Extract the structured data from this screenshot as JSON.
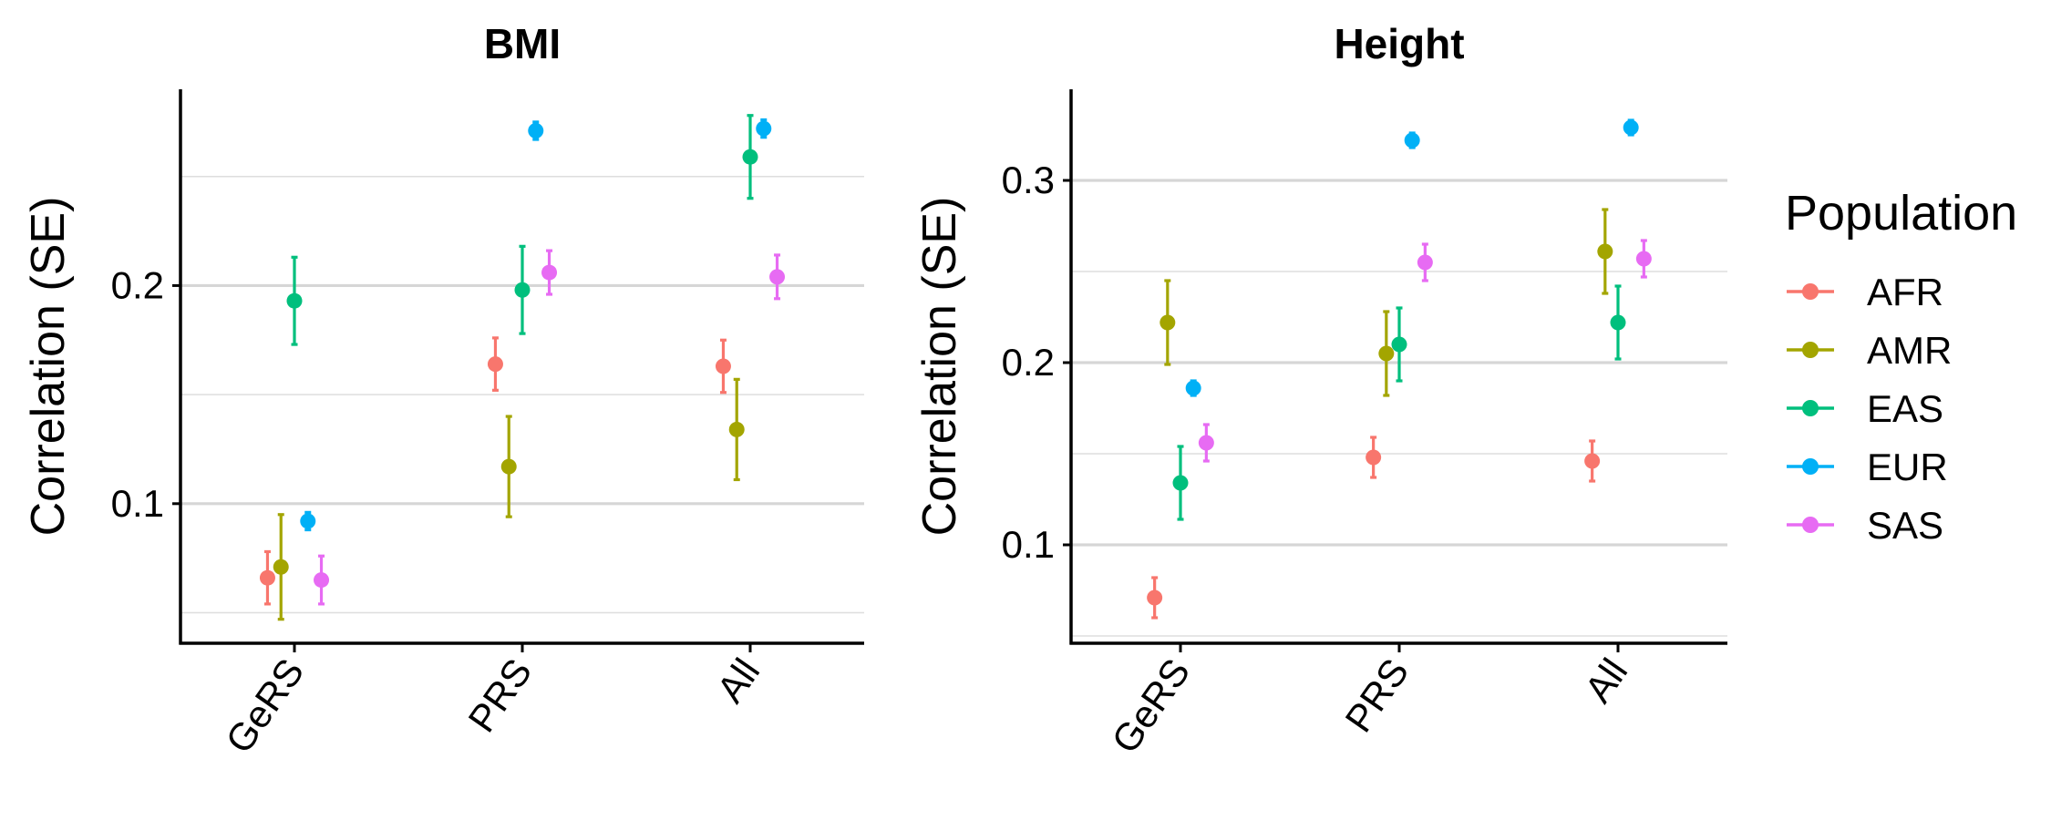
{
  "legend": {
    "title": "Population",
    "entries": [
      {
        "name": "AFR",
        "color": "#F8766D"
      },
      {
        "name": "AMR",
        "color": "#A3A500"
      },
      {
        "name": "EAS",
        "color": "#00BF7D"
      },
      {
        "name": "EUR",
        "color": "#00B0F6"
      },
      {
        "name": "SAS",
        "color": "#E76BF3"
      }
    ],
    "placement": "right"
  },
  "chart_data": [
    {
      "type": "scatter",
      "title": "BMI",
      "xlabel": "",
      "ylabel": "Correlation (SE)",
      "categories": [
        "GeRS",
        "PRS",
        "All"
      ],
      "ylim": [
        0.036,
        0.29
      ],
      "yticks": [
        0.1,
        0.2
      ],
      "ytick_labels": [
        "0.1",
        "0.2"
      ],
      "minor_gridlines": [
        0.05,
        0.15,
        0.25
      ],
      "grid": true,
      "series": [
        {
          "name": "AFR",
          "values": [
            0.066,
            0.164,
            0.163
          ],
          "se": [
            0.012,
            0.012,
            0.012
          ]
        },
        {
          "name": "AMR",
          "values": [
            0.071,
            0.117,
            0.134
          ],
          "se": [
            0.024,
            0.023,
            0.023
          ]
        },
        {
          "name": "EAS",
          "values": [
            0.193,
            0.198,
            0.259
          ],
          "se": [
            0.02,
            0.02,
            0.019
          ]
        },
        {
          "name": "EUR",
          "values": [
            0.092,
            0.271,
            0.272
          ],
          "se": [
            0.004,
            0.004,
            0.004
          ]
        },
        {
          "name": "SAS",
          "values": [
            0.065,
            0.206,
            0.204
          ],
          "se": [
            0.011,
            0.01,
            0.01
          ]
        }
      ]
    },
    {
      "type": "scatter",
      "title": "Height",
      "xlabel": "",
      "ylabel": "Correlation (SE)",
      "categories": [
        "GeRS",
        "PRS",
        "All"
      ],
      "ylim": [
        0.046,
        0.35
      ],
      "yticks": [
        0.1,
        0.2,
        0.3
      ],
      "ytick_labels": [
        "0.1",
        "0.2",
        "0.3"
      ],
      "minor_gridlines": [
        0.05,
        0.15,
        0.25
      ],
      "grid": true,
      "series": [
        {
          "name": "AFR",
          "values": [
            0.071,
            0.148,
            0.146
          ],
          "se": [
            0.011,
            0.011,
            0.011
          ]
        },
        {
          "name": "AMR",
          "values": [
            0.222,
            0.205,
            0.261
          ],
          "se": [
            0.023,
            0.023,
            0.023
          ]
        },
        {
          "name": "EAS",
          "values": [
            0.134,
            0.21,
            0.222
          ],
          "se": [
            0.02,
            0.02,
            0.02
          ]
        },
        {
          "name": "EUR",
          "values": [
            0.186,
            0.322,
            0.329
          ],
          "se": [
            0.004,
            0.004,
            0.004
          ]
        },
        {
          "name": "SAS",
          "values": [
            0.156,
            0.255,
            0.257
          ],
          "se": [
            0.01,
            0.01,
            0.01
          ]
        }
      ]
    }
  ]
}
